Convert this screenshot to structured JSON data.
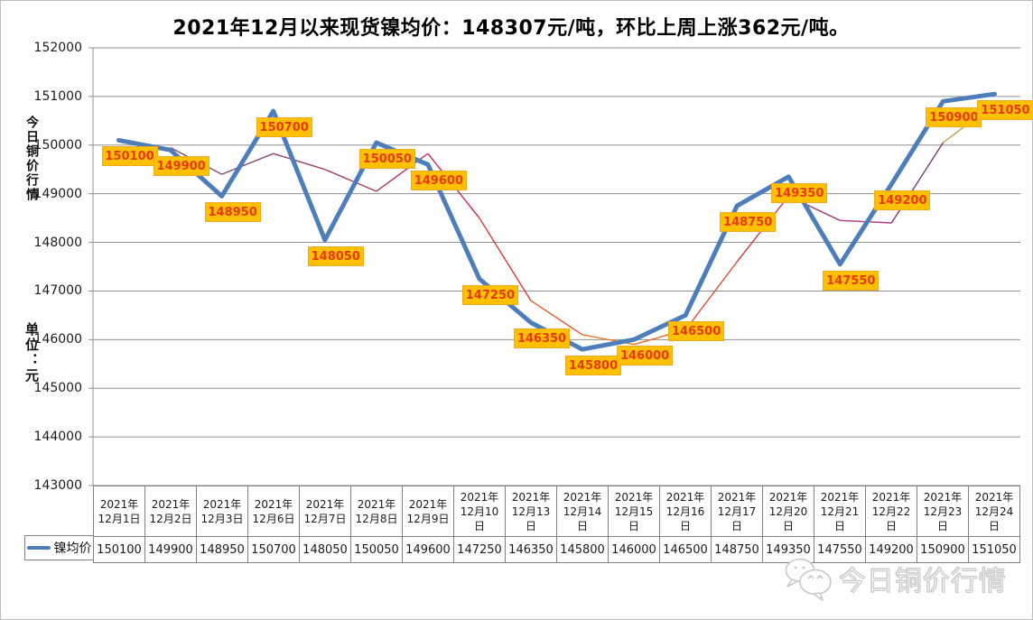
{
  "title": "2021年12月以来现货镍均价：148307元/吨，环比上周上涨362元/吨。",
  "y_axis": {
    "title_upper": "今日铜价行情",
    "title_lower": "单位：元",
    "ticks": [
      "152000",
      "151000",
      "150000",
      "149000",
      "148000",
      "147000",
      "146000",
      "145000",
      "144000",
      "143000"
    ]
  },
  "chart_data": {
    "type": "line",
    "title": "2021年12月以来现货镍均价：148307元/吨，环比上周上涨362元/吨。",
    "xlabel": "",
    "ylabel": "单位：元",
    "ylim": [
      143000,
      152000
    ],
    "grid": true,
    "legend_position": "bottom-left",
    "categories": [
      "2021年12月1日",
      "2021年12月2日",
      "2021年12月3日",
      "2021年12月6日",
      "2021年12月7日",
      "2021年12月8日",
      "2021年12月9日",
      "2021年12月10日",
      "2021年12月13日",
      "2021年12月14日",
      "2021年12月15日",
      "2021年12月16日",
      "2021年12月17日",
      "2021年12月20日",
      "2021年12月21日",
      "2021年12月22日",
      "2021年12月23日",
      "2021年12月24日"
    ],
    "series": [
      {
        "name": "镍均价",
        "color": "#4D7EBB",
        "line_width": 5,
        "values": [
          150100,
          149900,
          148950,
          150700,
          148050,
          150050,
          149600,
          147250,
          146350,
          145800,
          146000,
          146500,
          148750,
          149350,
          147550,
          149200,
          150900,
          151050
        ]
      },
      {
        "name": "辅助趋势线（无图例，数值为像素估读）",
        "line_width": 1.4,
        "estimated_from_pixels": true,
        "values": [
          null,
          149950,
          149400,
          149825,
          149500,
          149050,
          149825,
          148500,
          146800,
          146100,
          145900,
          146200,
          147600,
          148950,
          148450,
          148400,
          150050,
          150850
        ],
        "segment_colors": [
          "#8B4A6E",
          "#8B4A6E",
          "#99406A",
          "#A63A60",
          "#B5345A",
          "#CC2B4E",
          "#DC3A38",
          "#E55C2C",
          "#EC7C24",
          "#E86E28",
          "#DD4C30",
          "#C93A44",
          "#A63A78",
          "#B03880",
          "#7E3472",
          "#C2A04E"
        ]
      }
    ],
    "data_labels": {
      "background": "#FFC000",
      "text_color": "#E8390E",
      "values": [
        150100,
        149900,
        148950,
        150700,
        148050,
        150050,
        149600,
        147250,
        146350,
        145800,
        146000,
        146500,
        148750,
        149350,
        147550,
        149200,
        150900,
        151050
      ]
    },
    "gridline_color": "#8F8F8F"
  },
  "table": {
    "legend_label": "镍均价",
    "date_lines": [
      [
        "2021年",
        "12月1日"
      ],
      [
        "2021年",
        "12月2日"
      ],
      [
        "2021年",
        "12月3日"
      ],
      [
        "2021年",
        "12月6日"
      ],
      [
        "2021年",
        "12月7日"
      ],
      [
        "2021年",
        "12月8日"
      ],
      [
        "2021年",
        "12月9日"
      ],
      [
        "2021年",
        "12月10",
        "日"
      ],
      [
        "2021年",
        "12月13",
        "日"
      ],
      [
        "2021年",
        "12月14",
        "日"
      ],
      [
        "2021年",
        "12月15",
        "日"
      ],
      [
        "2021年",
        "12月16",
        "日"
      ],
      [
        "2021年",
        "12月17",
        "日"
      ],
      [
        "2021年",
        "12月20",
        "日"
      ],
      [
        "2021年",
        "12月21",
        "日"
      ],
      [
        "2021年",
        "12月22",
        "日"
      ],
      [
        "2021年",
        "12月23",
        "日"
      ],
      [
        "2021年",
        "12月24",
        "日"
      ]
    ]
  },
  "watermark": {
    "icon": "wechat-icon",
    "text": "今日铜价行情"
  }
}
